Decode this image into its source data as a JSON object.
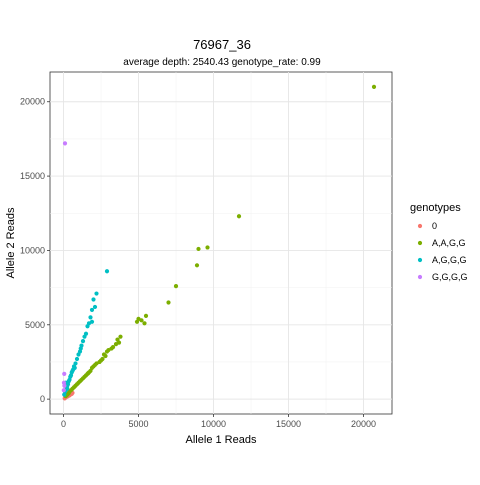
{
  "chart_data": {
    "type": "scatter",
    "title": "76967_36",
    "subtitle": "average depth:  2540.43  genotype_rate:  0.99",
    "xlabel": "Allele 1 Reads",
    "ylabel": "Allele 2 Reads",
    "xlim": [
      -900,
      21900
    ],
    "ylim": [
      -1000,
      22000
    ],
    "x_ticks": [
      0,
      5000,
      10000,
      15000,
      20000
    ],
    "y_ticks": [
      0,
      5000,
      10000,
      15000,
      20000
    ],
    "x_tick_labels": [
      "0",
      "5000",
      "10000",
      "15000",
      "20000"
    ],
    "y_tick_labels": [
      "0",
      "5000",
      "10000",
      "15000",
      "20000"
    ],
    "grid": true,
    "legend_position": "right",
    "legend_title": "genotypes",
    "series": [
      {
        "name": "0",
        "color": "#F8766D",
        "points": [
          [
            100,
            80
          ],
          [
            200,
            150
          ],
          [
            300,
            200
          ],
          [
            350,
            260
          ],
          [
            450,
            300
          ],
          [
            500,
            380
          ],
          [
            600,
            420
          ],
          [
            150,
            120
          ],
          [
            250,
            180
          ],
          [
            80,
            50
          ],
          [
            400,
            250
          ],
          [
            550,
            350
          ]
        ]
      },
      {
        "name": "A,A,G,G",
        "color": "#7CAE00",
        "points": [
          [
            20700,
            21000
          ],
          [
            11700,
            12300
          ],
          [
            9600,
            10200
          ],
          [
            9000,
            10100
          ],
          [
            8900,
            9000
          ],
          [
            7500,
            7600
          ],
          [
            7000,
            6500
          ],
          [
            5500,
            5600
          ],
          [
            5200,
            5300
          ],
          [
            5000,
            5400
          ],
          [
            5400,
            5100
          ],
          [
            4900,
            5200
          ],
          [
            3800,
            4200
          ],
          [
            3600,
            4000
          ],
          [
            3700,
            3800
          ],
          [
            3300,
            3500
          ],
          [
            3200,
            3400
          ],
          [
            2900,
            3200
          ],
          [
            2700,
            3000
          ],
          [
            2800,
            2900
          ],
          [
            2600,
            2700
          ],
          [
            2400,
            2500
          ],
          [
            2200,
            2400
          ],
          [
            2000,
            2200
          ],
          [
            1900,
            2100
          ],
          [
            1800,
            1900
          ],
          [
            1700,
            1800
          ],
          [
            1600,
            1700
          ],
          [
            1500,
            1600
          ],
          [
            1400,
            1500
          ],
          [
            1300,
            1400
          ],
          [
            1200,
            1300
          ],
          [
            1100,
            1200
          ],
          [
            1000,
            1100
          ],
          [
            900,
            1000
          ],
          [
            800,
            900
          ],
          [
            700,
            800
          ],
          [
            600,
            700
          ],
          [
            500,
            600
          ],
          [
            400,
            500
          ],
          [
            350,
            400
          ],
          [
            300,
            350
          ],
          [
            250,
            300
          ],
          [
            200,
            250
          ],
          [
            150,
            200
          ],
          [
            3000,
            3300
          ],
          [
            3500,
            3700
          ],
          [
            2500,
            2600
          ],
          [
            2100,
            2300
          ],
          [
            1650,
            1750
          ]
        ]
      },
      {
        "name": "A,G,G,G",
        "color": "#00BFC4",
        "points": [
          [
            2900,
            8600
          ],
          [
            2200,
            7100
          ],
          [
            2000,
            6700
          ],
          [
            1900,
            6000
          ],
          [
            2100,
            6200
          ],
          [
            1800,
            5500
          ],
          [
            1700,
            5100
          ],
          [
            1600,
            4900
          ],
          [
            1900,
            5200
          ],
          [
            1500,
            4400
          ],
          [
            1300,
            3900
          ],
          [
            1200,
            3600
          ],
          [
            1100,
            3200
          ],
          [
            1000,
            3000
          ],
          [
            900,
            2700
          ],
          [
            800,
            2400
          ],
          [
            700,
            2200
          ],
          [
            600,
            1900
          ],
          [
            550,
            1800
          ],
          [
            500,
            1600
          ],
          [
            450,
            1500
          ],
          [
            400,
            1300
          ],
          [
            350,
            1200
          ],
          [
            300,
            1000
          ],
          [
            250,
            900
          ],
          [
            200,
            800
          ],
          [
            150,
            600
          ],
          [
            100,
            500
          ],
          [
            50,
            300
          ],
          [
            150,
            1100
          ],
          [
            250,
            700
          ],
          [
            650,
            2000
          ],
          [
            750,
            2100
          ],
          [
            1150,
            3400
          ],
          [
            1400,
            4200
          ]
        ]
      },
      {
        "name": "G,G,G,G",
        "color": "#C77CFF",
        "points": [
          [
            100,
            17200
          ],
          [
            50,
            1700
          ],
          [
            30,
            1100
          ],
          [
            60,
            900
          ],
          [
            20,
            600
          ]
        ]
      }
    ]
  }
}
